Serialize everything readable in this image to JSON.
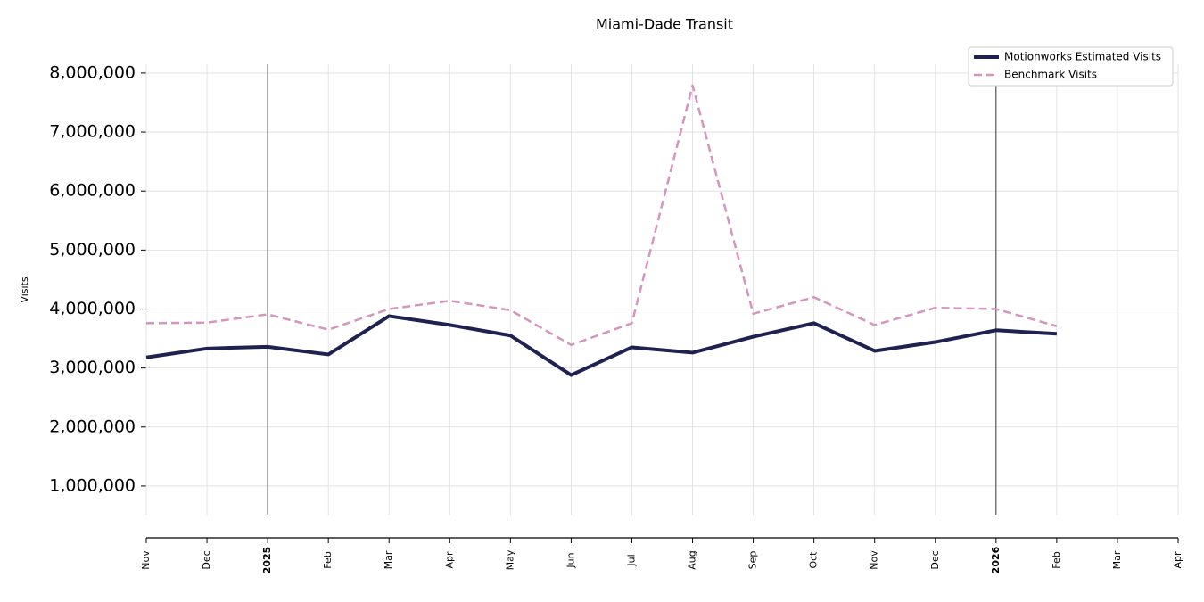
{
  "chart_data": {
    "type": "line",
    "title": "Miami-Dade Transit",
    "ylabel": "Visits",
    "categories": [
      "Nov",
      "Dec",
      "2025",
      "Feb",
      "Mar",
      "Apr",
      "May",
      "Jun",
      "Jul",
      "Aug",
      "Sep",
      "Oct",
      "Nov",
      "Dec",
      "2026",
      "Feb",
      "Mar",
      "Apr"
    ],
    "series": [
      {
        "name": "Motionworks Estimated Visits",
        "color": "#1f2150",
        "linestyle": "solid",
        "values": [
          3180000,
          3330000,
          3360000,
          3230000,
          3880000,
          3730000,
          3550000,
          2880000,
          3350000,
          3260000,
          3530000,
          3760000,
          3290000,
          3440000,
          3640000,
          3580000,
          null,
          null
        ]
      },
      {
        "name": "Benchmark Visits",
        "color": "#d595bd",
        "linestyle": "dashed",
        "values": [
          3760000,
          3770000,
          3910000,
          3650000,
          4000000,
          4140000,
          3980000,
          3390000,
          3760000,
          7790000,
          3920000,
          4200000,
          3730000,
          4020000,
          4000000,
          3710000,
          null,
          null
        ]
      }
    ],
    "ylim": [
      500000,
      8150000
    ],
    "yticks": [
      {
        "value": 1000000,
        "label": "1,000,000"
      },
      {
        "value": 2000000,
        "label": "2,000,000"
      },
      {
        "value": 3000000,
        "label": "3,000,000"
      },
      {
        "value": 4000000,
        "label": "4,000,000"
      },
      {
        "value": 5000000,
        "label": "5,000,000"
      },
      {
        "value": 6000000,
        "label": "6,000,000"
      },
      {
        "value": 7000000,
        "label": "7,000,000"
      },
      {
        "value": 8000000,
        "label": "8,000,000"
      }
    ],
    "grid": true,
    "legend": "upper right"
  }
}
